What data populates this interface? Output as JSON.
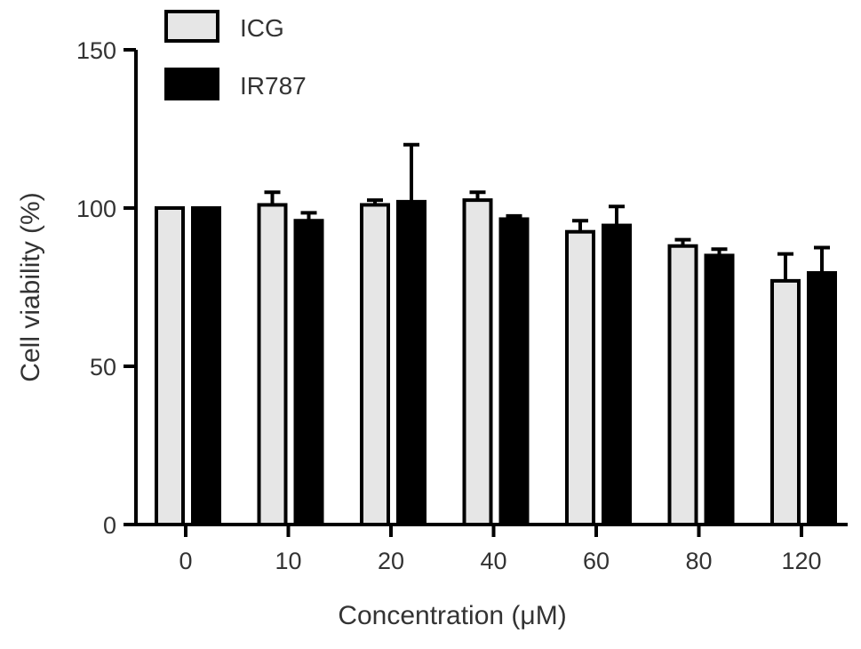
{
  "chart_data": {
    "type": "bar",
    "title": "",
    "xlabel": "Concentration (μM)",
    "ylabel": "Cell viability (%)",
    "ylim": [
      0,
      150
    ],
    "yticks": [
      0,
      50,
      100,
      150
    ],
    "categories": [
      "0",
      "10",
      "20",
      "40",
      "60",
      "80",
      "120"
    ],
    "series": [
      {
        "name": "ICG",
        "color": "#e6e6e6",
        "values": [
          100,
          101,
          101,
          102.5,
          92.5,
          88,
          77
        ],
        "errors": [
          0,
          4,
          1.5,
          2.5,
          3.5,
          2,
          8.5
        ]
      },
      {
        "name": "IR787",
        "color": "#000000",
        "values": [
          100,
          96,
          102,
          96.5,
          94.5,
          85,
          79.5
        ],
        "errors": [
          0,
          2.5,
          18,
          1,
          6,
          2,
          8
        ]
      }
    ],
    "error_bars": "upper",
    "legend_position": "top-left",
    "grid": false
  }
}
